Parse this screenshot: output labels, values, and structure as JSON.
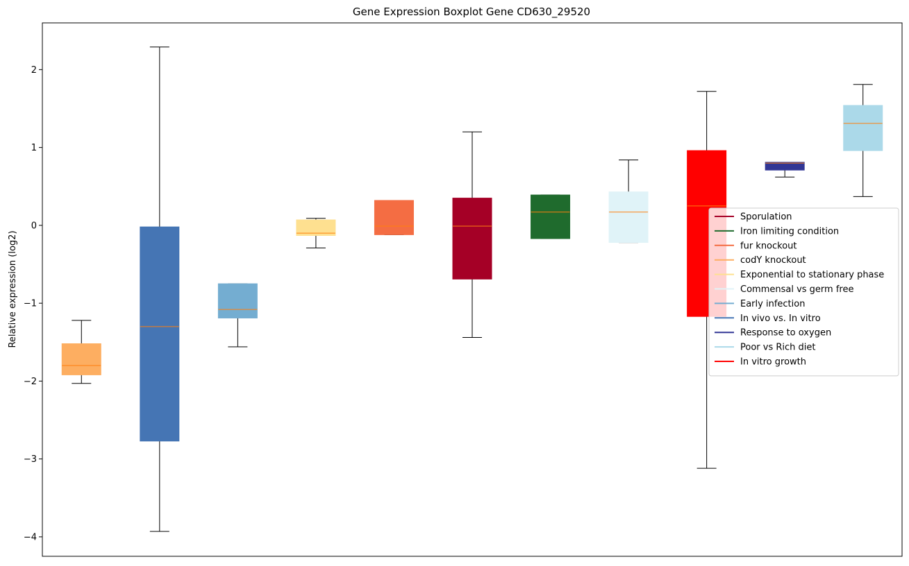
{
  "chart_data": {
    "type": "boxplot",
    "title": "Gene Expression Boxplot Gene CD630_29520",
    "xlabel": "",
    "ylabel": "Relative expression (log2)",
    "ylim": [
      -4.25,
      2.6
    ],
    "yticks": [
      -4,
      -3,
      -2,
      -1,
      0,
      1,
      2
    ],
    "ytick_labels": [
      "−4",
      "−3",
      "−2",
      "−1",
      "0",
      "1",
      "2"
    ],
    "grid": false,
    "legend_position": "right",
    "colors": {
      "whisker": "#000000",
      "median": "#ff7f0e",
      "axis": "#000000"
    },
    "boxes": [
      {
        "color": "#fdae61",
        "whisker_low": -2.03,
        "q1": -1.92,
        "median": -1.8,
        "q3": -1.52,
        "whisker_high": -1.22
      },
      {
        "color": "#4575b4",
        "whisker_low": -3.93,
        "q1": -2.77,
        "median": -1.3,
        "q3": -0.02,
        "whisker_high": 2.29
      },
      {
        "color": "#74add1",
        "whisker_low": -1.56,
        "q1": -1.19,
        "median": -1.08,
        "q3": -0.75,
        "whisker_high": -0.75
      },
      {
        "color": "#fee090",
        "whisker_low": -0.29,
        "q1": -0.13,
        "median": -0.1,
        "q3": 0.07,
        "whisker_high": 0.09
      },
      {
        "color": "#f46d43",
        "whisker_low": -0.12,
        "q1": -0.12,
        "median": -0.01,
        "q3": 0.32,
        "whisker_high": 0.32
      },
      {
        "color": "#a50026",
        "whisker_low": -1.44,
        "q1": -0.69,
        "median": -0.01,
        "q3": 0.35,
        "whisker_high": 1.2
      },
      {
        "color": "#1f6b2d",
        "whisker_low": -0.17,
        "q1": -0.17,
        "median": 0.17,
        "q3": 0.39,
        "whisker_high": 0.39
      },
      {
        "color": "#e0f3f8",
        "whisker_low": -0.22,
        "q1": -0.22,
        "median": 0.17,
        "q3": 0.43,
        "whisker_high": 0.84
      },
      {
        "color": "#ff0000",
        "whisker_low": -3.12,
        "q1": -1.17,
        "median": 0.25,
        "q3": 0.96,
        "whisker_high": 1.72
      },
      {
        "color": "#313695",
        "whisker_low": 0.62,
        "q1": 0.71,
        "median": 0.8,
        "q3": 0.81,
        "whisker_high": 0.81
      },
      {
        "color": "#abd9e9",
        "whisker_low": 0.37,
        "q1": 0.96,
        "median": 1.31,
        "q3": 1.54,
        "whisker_high": 1.81
      }
    ],
    "legend": [
      {
        "label": "Sporulation",
        "color": "#a50026"
      },
      {
        "label": "Iron limiting condition",
        "color": "#1f6b2d"
      },
      {
        "label": "fur knockout",
        "color": "#f46d43"
      },
      {
        "label": "codY knockout",
        "color": "#fdae61"
      },
      {
        "label": "Exponential to stationary phase",
        "color": "#fee090"
      },
      {
        "label": "Commensal vs germ free",
        "color": "#e0f3f8"
      },
      {
        "label": "Early infection",
        "color": "#74add1"
      },
      {
        "label": "In vivo vs. In vitro",
        "color": "#4575b4"
      },
      {
        "label": "Response to oxygen",
        "color": "#313695"
      },
      {
        "label": "Poor vs Rich diet",
        "color": "#abd9e9"
      },
      {
        "label": "In vitro growth",
        "color": "#ff0000"
      }
    ]
  }
}
